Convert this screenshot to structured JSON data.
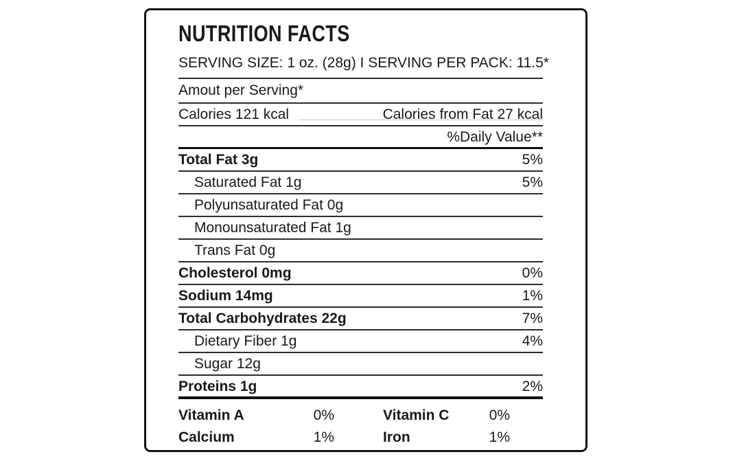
{
  "label": {
    "title": "NUTRITION FACTS",
    "serving_line": "SERVING SIZE: 1 oz. (28g) I SERVING PER PACK: 11.5*",
    "amount_per_serving": "Amout per Serving*",
    "calories": "Calories 121 kcal",
    "calories_from_fat": "Calories from Fat 27 kcal",
    "daily_value_header": "%Daily Value**",
    "rows": [
      {
        "name": "Total Fat 3g",
        "value": "5%"
      },
      {
        "name": "Saturated Fat 1g",
        "value": "5%"
      },
      {
        "name": "Polyunsaturated Fat 0g",
        "value": ""
      },
      {
        "name": "Monounsaturated Fat 1g",
        "value": ""
      },
      {
        "name": "Trans Fat 0g",
        "value": ""
      },
      {
        "name": "Cholesterol 0mg",
        "value": "0%"
      },
      {
        "name": "Sodium 14mg",
        "value": "1%"
      },
      {
        "name": "Total Carbohydrates 22g",
        "value": "7%"
      },
      {
        "name": "Dietary Fiber 1g",
        "value": "4%"
      },
      {
        "name": "Sugar 12g",
        "value": ""
      },
      {
        "name": "Proteins 1g",
        "value": "2%"
      }
    ],
    "micronutrients": [
      {
        "name": "Vitamin A",
        "value": "0%"
      },
      {
        "name": "Vitamin C",
        "value": "0%"
      },
      {
        "name": "Calcium",
        "value": "1%"
      },
      {
        "name": "Iron",
        "value": "1%"
      }
    ],
    "colors": {
      "text": "#191919",
      "rule": "#2c2c2c",
      "thick_rule": "#0e0e0e",
      "background": "#ffffff"
    }
  }
}
